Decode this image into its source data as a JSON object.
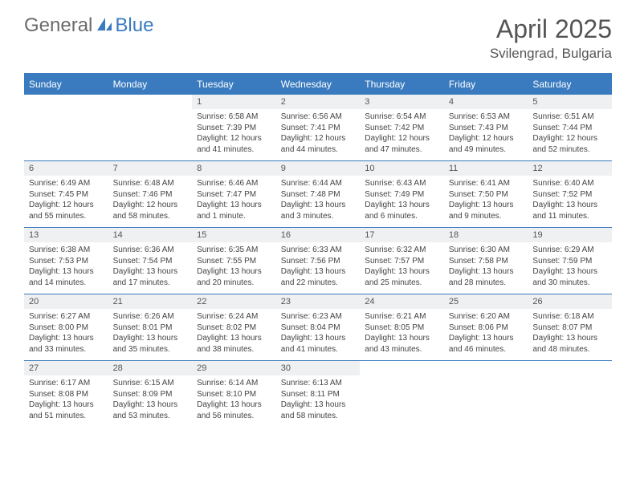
{
  "logo": {
    "part1": "General",
    "part2": "Blue"
  },
  "title": "April 2025",
  "subtitle": "Svilengrad, Bulgaria",
  "colors": {
    "accent": "#3a7bbf",
    "muted_bg": "#eef0f2",
    "text": "#555555",
    "body_text": "#444444",
    "background": "#ffffff"
  },
  "day_labels": [
    "Sunday",
    "Monday",
    "Tuesday",
    "Wednesday",
    "Thursday",
    "Friday",
    "Saturday"
  ],
  "weeks": [
    [
      {
        "n": "",
        "sr": "",
        "ss": "",
        "dl": ""
      },
      {
        "n": "",
        "sr": "",
        "ss": "",
        "dl": ""
      },
      {
        "n": "1",
        "sr": "Sunrise: 6:58 AM",
        "ss": "Sunset: 7:39 PM",
        "dl": "Daylight: 12 hours and 41 minutes."
      },
      {
        "n": "2",
        "sr": "Sunrise: 6:56 AM",
        "ss": "Sunset: 7:41 PM",
        "dl": "Daylight: 12 hours and 44 minutes."
      },
      {
        "n": "3",
        "sr": "Sunrise: 6:54 AM",
        "ss": "Sunset: 7:42 PM",
        "dl": "Daylight: 12 hours and 47 minutes."
      },
      {
        "n": "4",
        "sr": "Sunrise: 6:53 AM",
        "ss": "Sunset: 7:43 PM",
        "dl": "Daylight: 12 hours and 49 minutes."
      },
      {
        "n": "5",
        "sr": "Sunrise: 6:51 AM",
        "ss": "Sunset: 7:44 PM",
        "dl": "Daylight: 12 hours and 52 minutes."
      }
    ],
    [
      {
        "n": "6",
        "sr": "Sunrise: 6:49 AM",
        "ss": "Sunset: 7:45 PM",
        "dl": "Daylight: 12 hours and 55 minutes."
      },
      {
        "n": "7",
        "sr": "Sunrise: 6:48 AM",
        "ss": "Sunset: 7:46 PM",
        "dl": "Daylight: 12 hours and 58 minutes."
      },
      {
        "n": "8",
        "sr": "Sunrise: 6:46 AM",
        "ss": "Sunset: 7:47 PM",
        "dl": "Daylight: 13 hours and 1 minute."
      },
      {
        "n": "9",
        "sr": "Sunrise: 6:44 AM",
        "ss": "Sunset: 7:48 PM",
        "dl": "Daylight: 13 hours and 3 minutes."
      },
      {
        "n": "10",
        "sr": "Sunrise: 6:43 AM",
        "ss": "Sunset: 7:49 PM",
        "dl": "Daylight: 13 hours and 6 minutes."
      },
      {
        "n": "11",
        "sr": "Sunrise: 6:41 AM",
        "ss": "Sunset: 7:50 PM",
        "dl": "Daylight: 13 hours and 9 minutes."
      },
      {
        "n": "12",
        "sr": "Sunrise: 6:40 AM",
        "ss": "Sunset: 7:52 PM",
        "dl": "Daylight: 13 hours and 11 minutes."
      }
    ],
    [
      {
        "n": "13",
        "sr": "Sunrise: 6:38 AM",
        "ss": "Sunset: 7:53 PM",
        "dl": "Daylight: 13 hours and 14 minutes."
      },
      {
        "n": "14",
        "sr": "Sunrise: 6:36 AM",
        "ss": "Sunset: 7:54 PM",
        "dl": "Daylight: 13 hours and 17 minutes."
      },
      {
        "n": "15",
        "sr": "Sunrise: 6:35 AM",
        "ss": "Sunset: 7:55 PM",
        "dl": "Daylight: 13 hours and 20 minutes."
      },
      {
        "n": "16",
        "sr": "Sunrise: 6:33 AM",
        "ss": "Sunset: 7:56 PM",
        "dl": "Daylight: 13 hours and 22 minutes."
      },
      {
        "n": "17",
        "sr": "Sunrise: 6:32 AM",
        "ss": "Sunset: 7:57 PM",
        "dl": "Daylight: 13 hours and 25 minutes."
      },
      {
        "n": "18",
        "sr": "Sunrise: 6:30 AM",
        "ss": "Sunset: 7:58 PM",
        "dl": "Daylight: 13 hours and 28 minutes."
      },
      {
        "n": "19",
        "sr": "Sunrise: 6:29 AM",
        "ss": "Sunset: 7:59 PM",
        "dl": "Daylight: 13 hours and 30 minutes."
      }
    ],
    [
      {
        "n": "20",
        "sr": "Sunrise: 6:27 AM",
        "ss": "Sunset: 8:00 PM",
        "dl": "Daylight: 13 hours and 33 minutes."
      },
      {
        "n": "21",
        "sr": "Sunrise: 6:26 AM",
        "ss": "Sunset: 8:01 PM",
        "dl": "Daylight: 13 hours and 35 minutes."
      },
      {
        "n": "22",
        "sr": "Sunrise: 6:24 AM",
        "ss": "Sunset: 8:02 PM",
        "dl": "Daylight: 13 hours and 38 minutes."
      },
      {
        "n": "23",
        "sr": "Sunrise: 6:23 AM",
        "ss": "Sunset: 8:04 PM",
        "dl": "Daylight: 13 hours and 41 minutes."
      },
      {
        "n": "24",
        "sr": "Sunrise: 6:21 AM",
        "ss": "Sunset: 8:05 PM",
        "dl": "Daylight: 13 hours and 43 minutes."
      },
      {
        "n": "25",
        "sr": "Sunrise: 6:20 AM",
        "ss": "Sunset: 8:06 PM",
        "dl": "Daylight: 13 hours and 46 minutes."
      },
      {
        "n": "26",
        "sr": "Sunrise: 6:18 AM",
        "ss": "Sunset: 8:07 PM",
        "dl": "Daylight: 13 hours and 48 minutes."
      }
    ],
    [
      {
        "n": "27",
        "sr": "Sunrise: 6:17 AM",
        "ss": "Sunset: 8:08 PM",
        "dl": "Daylight: 13 hours and 51 minutes."
      },
      {
        "n": "28",
        "sr": "Sunrise: 6:15 AM",
        "ss": "Sunset: 8:09 PM",
        "dl": "Daylight: 13 hours and 53 minutes."
      },
      {
        "n": "29",
        "sr": "Sunrise: 6:14 AM",
        "ss": "Sunset: 8:10 PM",
        "dl": "Daylight: 13 hours and 56 minutes."
      },
      {
        "n": "30",
        "sr": "Sunrise: 6:13 AM",
        "ss": "Sunset: 8:11 PM",
        "dl": "Daylight: 13 hours and 58 minutes."
      },
      {
        "n": "",
        "sr": "",
        "ss": "",
        "dl": ""
      },
      {
        "n": "",
        "sr": "",
        "ss": "",
        "dl": ""
      },
      {
        "n": "",
        "sr": "",
        "ss": "",
        "dl": ""
      }
    ]
  ]
}
